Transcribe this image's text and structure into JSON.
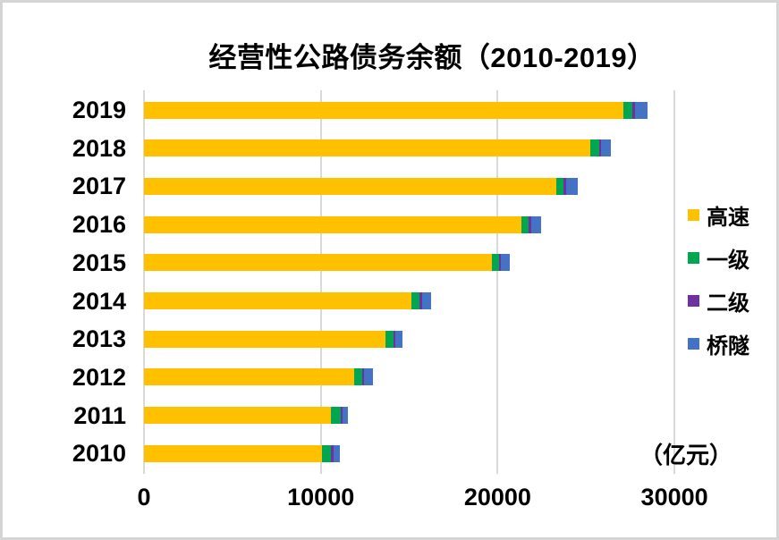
{
  "chart_data": {
    "type": "bar",
    "orientation": "horizontal",
    "stacked": true,
    "title": "经营性公路债务余额（2010-2019）",
    "unit_label": "（亿元）",
    "categories": [
      "2019",
      "2018",
      "2017",
      "2016",
      "2015",
      "2014",
      "2013",
      "2012",
      "2011",
      "2010"
    ],
    "series": [
      {
        "name": "高速",
        "color": "#FFC000",
        "values": [
          27120,
          25250,
          23340,
          21350,
          19660,
          15140,
          13680,
          11910,
          10560,
          10050
        ]
      },
      {
        "name": "一级",
        "color": "#00A650",
        "values": [
          520,
          500,
          400,
          420,
          430,
          440,
          450,
          420,
          550,
          520
        ]
      },
      {
        "name": "二级",
        "color": "#7030A0",
        "values": [
          120,
          100,
          140,
          140,
          90,
          140,
          90,
          120,
          120,
          150
        ]
      },
      {
        "name": "桥隧",
        "color": "#4472C4",
        "values": [
          720,
          570,
          670,
          540,
          520,
          530,
          420,
          500,
          290,
          370
        ]
      }
    ],
    "totals": [
      28480,
      26420,
      24550,
      22450,
      20700,
      16250,
      14640,
      12950,
      11520,
      11090
    ],
    "x_axis": {
      "ticks": [
        0,
        10000,
        20000,
        30000
      ],
      "tick_labels": [
        "0",
        "10000",
        "20000",
        "30000"
      ],
      "max": 30000
    },
    "legend_position": "right",
    "grid": true,
    "colors": {
      "gridline": "#d9d9d9",
      "text": "#000000",
      "background": "#ffffff",
      "frame_border": "#d5d5d5"
    }
  }
}
